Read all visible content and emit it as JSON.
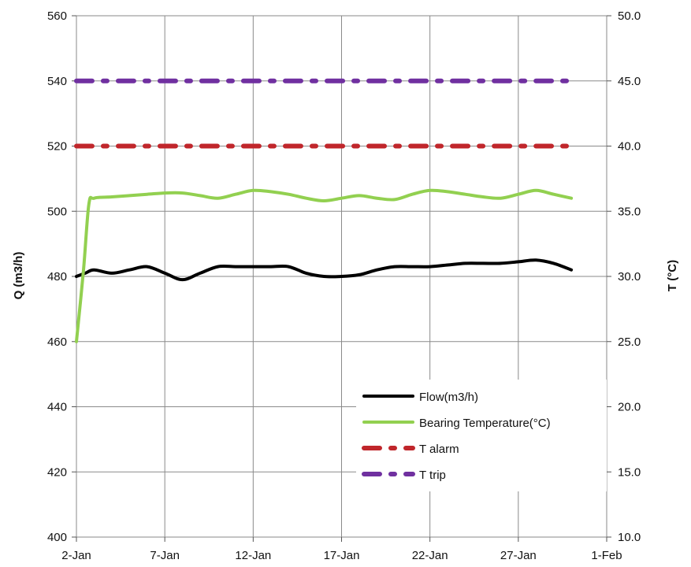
{
  "chart_data": {
    "type": "line",
    "x_tick_labels": [
      "2-Jan",
      "7-Jan",
      "12-Jan",
      "17-Jan",
      "22-Jan",
      "27-Jan",
      "1-Feb"
    ],
    "xlim": [
      "2-Jan",
      "1-Feb"
    ],
    "ylabel": "Q (m3/h)",
    "ylim": [
      400,
      560
    ],
    "y_tick_labels": [
      "400",
      "420",
      "440",
      "460",
      "480",
      "500",
      "520",
      "540",
      "560"
    ],
    "y2label": "T (°C)",
    "y2lim": [
      10.0,
      50.0
    ],
    "y2_tick_labels": [
      "10.0",
      "15.0",
      "20.0",
      "25.0",
      "30.0",
      "35.0",
      "40.0",
      "45.0",
      "50.0"
    ],
    "grid": true,
    "legend_position": "bottom-right",
    "series": [
      {
        "name": "Flow(m3/h)",
        "axis": "left",
        "color": "#000000",
        "style": "solid",
        "x": [
          "2-Jan",
          "2.5-Jan",
          "3-Jan",
          "4-Jan",
          "5-Jan",
          "6-Jan",
          "7-Jan",
          "8-Jan",
          "9-Jan",
          "10-Jan",
          "11-Jan",
          "12-Jan",
          "13-Jan",
          "14-Jan",
          "15-Jan",
          "16-Jan",
          "17-Jan",
          "18-Jan",
          "19-Jan",
          "20-Jan",
          "21-Jan",
          "22-Jan",
          "23-Jan",
          "24-Jan",
          "25-Jan",
          "26-Jan",
          "27-Jan",
          "28-Jan",
          "29-Jan",
          "30-Jan"
        ],
        "y": [
          480,
          481,
          482,
          481,
          482,
          483,
          481,
          479,
          481,
          483,
          483,
          483,
          483,
          483,
          481,
          480,
          480,
          480.5,
          482,
          483,
          483,
          483,
          483.5,
          484,
          484,
          484,
          484.5,
          485,
          484,
          482
        ]
      },
      {
        "name": "Bearing Temperature(°C)",
        "axis": "right",
        "color": "#92d050",
        "style": "solid",
        "x": [
          "2-Jan",
          "2.4-Jan",
          "2.7-Jan",
          "3-Jan",
          "4-Jan",
          "5-Jan",
          "6-Jan",
          "7-Jan",
          "8-Jan",
          "9-Jan",
          "10-Jan",
          "11-Jan",
          "12-Jan",
          "13-Jan",
          "14-Jan",
          "15-Jan",
          "16-Jan",
          "17-Jan",
          "18-Jan",
          "19-Jan",
          "20-Jan",
          "21-Jan",
          "22-Jan",
          "23-Jan",
          "24-Jan",
          "25-Jan",
          "26-Jan",
          "27-Jan",
          "28-Jan",
          "29-Jan",
          "30-Jan"
        ],
        "y": [
          25.0,
          30.5,
          35.5,
          36.0,
          36.1,
          36.2,
          36.3,
          36.4,
          36.4,
          36.2,
          36.0,
          36.3,
          36.6,
          36.5,
          36.3,
          36.0,
          35.8,
          36.0,
          36.2,
          36.0,
          35.9,
          36.3,
          36.6,
          36.5,
          36.3,
          36.1,
          36.0,
          36.3,
          36.6,
          36.3,
          36.0
        ]
      },
      {
        "name": "T alarm",
        "axis": "right",
        "color": "#c0262b",
        "style": "dash-dot",
        "x": [
          "2-Jan",
          "30-Jan"
        ],
        "y": [
          40.0,
          40.0
        ]
      },
      {
        "name": "T trip",
        "axis": "right",
        "color": "#7030a0",
        "style": "dash-dot",
        "x": [
          "2-Jan",
          "30-Jan"
        ],
        "y": [
          45.0,
          45.0
        ]
      }
    ]
  }
}
